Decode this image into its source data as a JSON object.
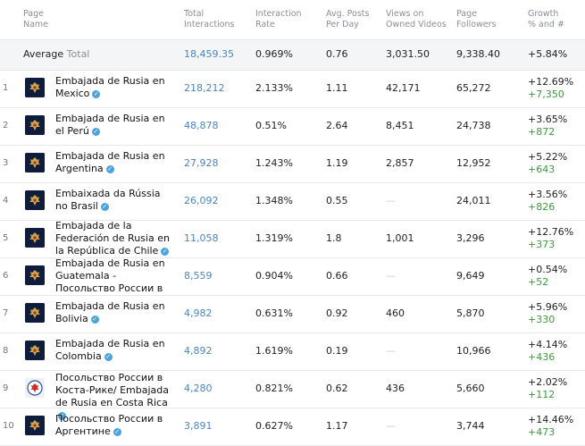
{
  "headers": {
    "page_name": [
      "Page",
      "Name"
    ],
    "total_interactions": [
      "Total",
      "Interactions"
    ],
    "interaction_rate": [
      "Interaction",
      "Rate"
    ],
    "avg_posts": [
      "Avg. Posts",
      "Per Day"
    ],
    "views": [
      "Views on",
      "Owned Videos"
    ],
    "followers": [
      "Page",
      "Followers"
    ],
    "growth": [
      "Growth",
      "% and #"
    ]
  },
  "average": {
    "label": "Average",
    "sublabel": "Total",
    "total_interactions": "18,459.35",
    "interaction_rate": "0.969%",
    "avg_posts": "0.76",
    "views": "3,031.50",
    "followers": "9,338.40",
    "growth_pct": "+5.84%"
  },
  "rows": [
    {
      "num": "1",
      "name": "Embajada de Rusia en Mexico",
      "interactions": "218,212",
      "rate": "2.133%",
      "posts": "1.11",
      "views": "42,171",
      "followers": "65,272",
      "growth_pct": "+12.69%",
      "growth_num": "+7,350"
    },
    {
      "num": "2",
      "name": "Embajada de Rusia en el Perú",
      "interactions": "48,878",
      "rate": "0.51%",
      "posts": "2.64",
      "views": "8,451",
      "followers": "24,738",
      "growth_pct": "+3.65%",
      "growth_num": "+872"
    },
    {
      "num": "3",
      "name": "Embajada de Rusia en Argentina",
      "interactions": "27,928",
      "rate": "1.243%",
      "posts": "1.19",
      "views": "2,857",
      "followers": "12,952",
      "growth_pct": "+5.22%",
      "growth_num": "+643"
    },
    {
      "num": "4",
      "name": "Embaixada da Rússia no Brasil",
      "interactions": "26,092",
      "rate": "1.348%",
      "posts": "0.55",
      "views": "—",
      "followers": "24,011",
      "growth_pct": "+3.56%",
      "growth_num": "+826"
    },
    {
      "num": "5",
      "name": "Embajada de la Federación de Rusia en la República de Chile",
      "interactions": "11,058",
      "rate": "1.319%",
      "posts": "1.8",
      "views": "1,001",
      "followers": "3,296",
      "growth_pct": "+12.76%",
      "growth_num": "+373"
    },
    {
      "num": "6",
      "name": "Embajada de Rusia en Guatemala - Посольство России в Гватемале",
      "interactions": "8,559",
      "rate": "0.904%",
      "posts": "0.66",
      "views": "—",
      "followers": "9,649",
      "growth_pct": "+0.54%",
      "growth_num": "+52"
    },
    {
      "num": "7",
      "name": "Embajada de Rusia en Bolivia",
      "interactions": "4,982",
      "rate": "0.631%",
      "posts": "0.92",
      "views": "460",
      "followers": "5,870",
      "growth_pct": "+5.96%",
      "growth_num": "+330"
    },
    {
      "num": "8",
      "name": "Embajada de Rusia en Colombia",
      "interactions": "4,892",
      "rate": "1.619%",
      "posts": "0.19",
      "views": "—",
      "followers": "10,966",
      "growth_pct": "+4.14%",
      "growth_num": "+436"
    },
    {
      "num": "9",
      "name": "Посольство России в Коста-Рике/ Embajada de Rusia en Costa Rica",
      "interactions": "4,280",
      "rate": "0.821%",
      "posts": "0.62",
      "views": "436",
      "followers": "5,660",
      "growth_pct": "+2.02%",
      "growth_num": "+112"
    },
    {
      "num": "10",
      "name": "Посольство России в Аргентине",
      "interactions": "3,891",
      "rate": "0.627%",
      "posts": "1.17",
      "views": "—",
      "followers": "3,744",
      "growth_pct": "+14.46%",
      "growth_num": "+473"
    }
  ],
  "colors": {
    "link": "#4b86c2",
    "growth_abs": "#3a9a3a",
    "verified": "#4aa3df"
  }
}
